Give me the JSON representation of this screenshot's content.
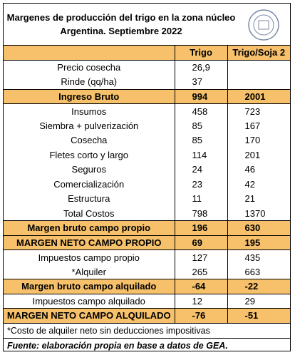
{
  "header": {
    "title_lines": [
      "Margenes de producción del trigo en la zona núcleo",
      "Argentina. Septiembre 2022"
    ]
  },
  "table": {
    "columns": [
      "Trigo",
      "Trigo/Soja 2"
    ],
    "rows": [
      {
        "label": "Precio cosecha",
        "values": [
          "26,9"
        ]
      },
      {
        "label": "Rinde (qq/ha)",
        "values": [
          37
        ]
      },
      {
        "label": "Ingreso Bruto",
        "values": [
          994,
          2001
        ],
        "highlight": true
      },
      {
        "label": "Insumos",
        "values": [
          458,
          723
        ]
      },
      {
        "label": "Siembra + pulverización",
        "values": [
          85,
          167
        ]
      },
      {
        "label": "Cosecha",
        "values": [
          85,
          170
        ]
      },
      {
        "label": "Fletes corto y largo",
        "values": [
          114,
          201
        ]
      },
      {
        "label": "Seguros",
        "values": [
          24,
          46
        ]
      },
      {
        "label": "Comercialización",
        "values": [
          23,
          42
        ]
      },
      {
        "label": "Estructura",
        "values": [
          11,
          21
        ]
      },
      {
        "label": "Total Costos",
        "values": [
          798,
          1370
        ]
      },
      {
        "label": "Margen bruto campo propio",
        "values": [
          196,
          630
        ],
        "highlight": true
      },
      {
        "label": "MARGEN NETO CAMPO PROPIO",
        "values": [
          69,
          195
        ],
        "highlight": true
      },
      {
        "label": "Impuestos campo propio",
        "values": [
          127,
          435
        ]
      },
      {
        "label": "*Alquiler",
        "values": [
          265,
          663
        ]
      },
      {
        "label": "Margen bruto campo alquilado",
        "values": [
          -64,
          -22
        ],
        "highlight": true
      },
      {
        "label": "Impuestos campo alquilado",
        "values": [
          12,
          29
        ]
      },
      {
        "label": "MARGEN NETO CAMPO ALQUILADO",
        "values": [
          -76,
          -51
        ],
        "highlight": true
      }
    ]
  },
  "notes": {
    "footnote": "*Costo de alquiler neto sin deducciones impositivas",
    "source": "Fuente: elaboración propia en base a datos de GEA."
  }
}
